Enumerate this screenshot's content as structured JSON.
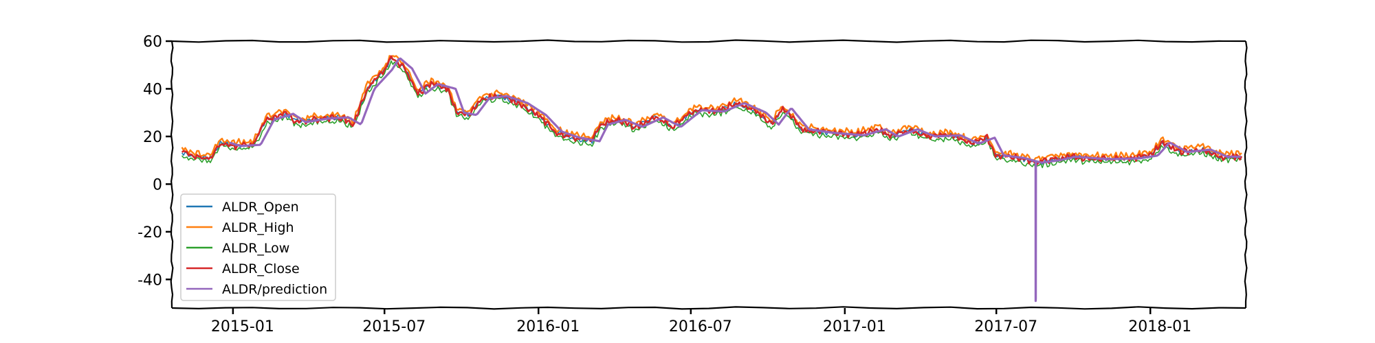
{
  "chart_data": {
    "type": "line",
    "title": "",
    "xlabel": "",
    "ylabel": "",
    "x_range": [
      "2014-10-20",
      "2018-04-25"
    ],
    "ylim": [
      -52,
      60
    ],
    "grid": false,
    "legend_position": "lower-left",
    "xticks": [
      "2015-01",
      "2015-07",
      "2016-01",
      "2016-07",
      "2017-01",
      "2017-07",
      "2018-01"
    ],
    "yticks": [
      60,
      40,
      20,
      0,
      -20,
      -40
    ],
    "ytick_labels": [
      "60",
      "40",
      "20",
      "0",
      "-20",
      "-40"
    ],
    "close_keypoints": [
      [
        "2014-11-01",
        13.5
      ],
      [
        "2014-11-20",
        11.5
      ],
      [
        "2014-12-05",
        11.0
      ],
      [
        "2014-12-18",
        17.5
      ],
      [
        "2015-01-01",
        16.0
      ],
      [
        "2015-01-25",
        16.5
      ],
      [
        "2015-02-10",
        27.0
      ],
      [
        "2015-03-05",
        29.5
      ],
      [
        "2015-03-20",
        26.0
      ],
      [
        "2015-04-15",
        27.5
      ],
      [
        "2015-05-10",
        28.0
      ],
      [
        "2015-05-25",
        25.0
      ],
      [
        "2015-06-10",
        40.0
      ],
      [
        "2015-07-01",
        48.0
      ],
      [
        "2015-07-10",
        53.0
      ],
      [
        "2015-07-25",
        48.5
      ],
      [
        "2015-08-10",
        38.0
      ],
      [
        "2015-08-25",
        42.0
      ],
      [
        "2015-09-15",
        40.0
      ],
      [
        "2015-09-25",
        30.0
      ],
      [
        "2015-10-10",
        29.0
      ],
      [
        "2015-10-25",
        36.0
      ],
      [
        "2015-11-15",
        37.0
      ],
      [
        "2015-12-10",
        34.0
      ],
      [
        "2016-01-01",
        29.0
      ],
      [
        "2016-01-20",
        22.0
      ],
      [
        "2016-02-10",
        19.5
      ],
      [
        "2016-03-05",
        18.0
      ],
      [
        "2016-03-15",
        25.0
      ],
      [
        "2016-04-05",
        27.0
      ],
      [
        "2016-04-25",
        24.0
      ],
      [
        "2016-05-20",
        28.0
      ],
      [
        "2016-06-10",
        24.0
      ],
      [
        "2016-07-05",
        31.0
      ],
      [
        "2016-08-01",
        30.5
      ],
      [
        "2016-08-25",
        34.0
      ],
      [
        "2016-09-20",
        30.0
      ],
      [
        "2016-10-05",
        25.0
      ],
      [
        "2016-10-20",
        32.0
      ],
      [
        "2016-11-10",
        23.0
      ],
      [
        "2016-12-10",
        21.5
      ],
      [
        "2017-01-15",
        20.5
      ],
      [
        "2017-02-10",
        23.0
      ],
      [
        "2017-02-25",
        20.0
      ],
      [
        "2017-03-20",
        23.0
      ],
      [
        "2017-04-10",
        20.0
      ],
      [
        "2017-05-10",
        20.5
      ],
      [
        "2017-06-01",
        17.0
      ],
      [
        "2017-06-20",
        19.5
      ],
      [
        "2017-07-01",
        12.0
      ],
      [
        "2017-07-25",
        11.0
      ],
      [
        "2017-08-15",
        9.0
      ],
      [
        "2017-09-05",
        10.0
      ],
      [
        "2017-09-25",
        11.5
      ],
      [
        "2017-11-01",
        10.5
      ],
      [
        "2017-12-10",
        10.8
      ],
      [
        "2018-01-01",
        12.0
      ],
      [
        "2018-01-15",
        17.5
      ],
      [
        "2018-02-05",
        13.5
      ],
      [
        "2018-03-05",
        14.5
      ],
      [
        "2018-03-25",
        11.5
      ],
      [
        "2018-04-20",
        11.5
      ]
    ],
    "series": [
      {
        "name": "ALDR_Open",
        "color": "#1f77b4",
        "offset": 0.0,
        "noise": 0.8,
        "width": 1.6,
        "start": "2014-11-01",
        "end": "2018-04-20"
      },
      {
        "name": "ALDR_High",
        "color": "#ff7f0e",
        "offset": 1.4,
        "noise": 1.0,
        "width": 2.4,
        "start": "2014-11-01",
        "end": "2018-04-20"
      },
      {
        "name": "ALDR_Low",
        "color": "#2ca02c",
        "offset": -1.4,
        "noise": 0.9,
        "width": 1.6,
        "start": "2014-11-01",
        "end": "2018-04-20"
      },
      {
        "name": "ALDR_Close",
        "color": "#d62728",
        "offset": 0.0,
        "noise": 1.0,
        "width": 2.6,
        "start": "2014-11-01",
        "end": "2018-04-20"
      },
      {
        "name": "ALDR/prediction",
        "color": "#9467bd",
        "offset": 0.0,
        "noise": 0.0,
        "width": 3.2,
        "start": "2014-12-28",
        "end": "2018-04-20",
        "lag_days": 9,
        "spike": {
          "date": "2017-08-17",
          "value": -49
        }
      }
    ]
  }
}
